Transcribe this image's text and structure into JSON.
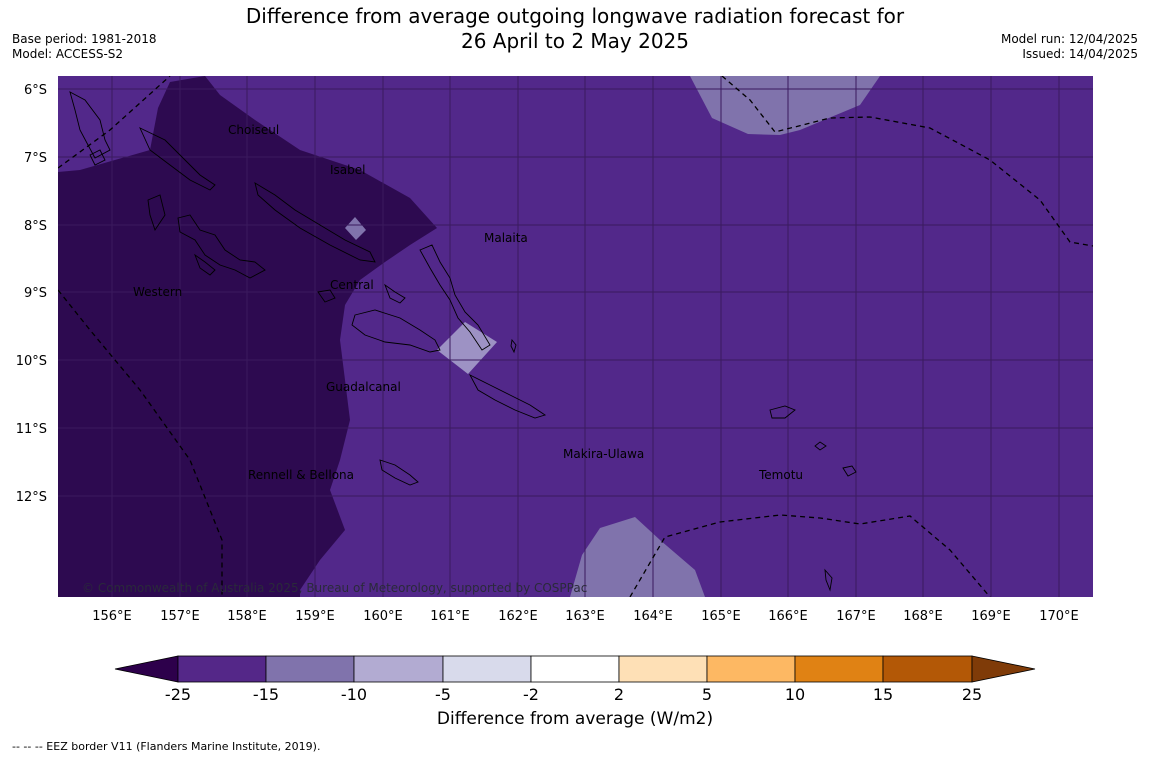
{
  "title": {
    "line1": "Difference from average outgoing longwave radiation forecast for",
    "line2": "26 April to 2 May 2025"
  },
  "meta_left": {
    "base_period": "Base period: 1981-2018",
    "model": "Model: ACCESS-S2"
  },
  "meta_right": {
    "model_run": "Model run: 12/04/2025",
    "issued": "Issued: 14/04/2025"
  },
  "map": {
    "lat_labels": [
      "6°S",
      "7°S",
      "8°S",
      "9°S",
      "10°S",
      "11°S",
      "12°S"
    ],
    "lon_labels": [
      "156°E",
      "157°E",
      "158°E",
      "159°E",
      "160°E",
      "161°E",
      "162°E",
      "163°E",
      "164°E",
      "165°E",
      "166°E",
      "167°E",
      "168°E",
      "169°E",
      "170°E"
    ],
    "region_labels": [
      {
        "name": "Choiseul"
      },
      {
        "name": "Isabel"
      },
      {
        "name": "Malaita"
      },
      {
        "name": "Western"
      },
      {
        "name": "Central"
      },
      {
        "name": "Guadalcanal"
      },
      {
        "name": "Makira-Ulawa"
      },
      {
        "name": "Temotu"
      },
      {
        "name": "Rennell & Bellona"
      }
    ],
    "copyright": "© Commonwealth of Australia 2025, Bureau of Meteorology, supported by COSPPac",
    "colors": {
      "ocean_base": "#52288a",
      "strong_negative": "#2d0a50",
      "moderate_negative": "#8073ac",
      "weak_negative": "#b2abd2",
      "gridline": "#3a1a5e"
    }
  },
  "colorbar": {
    "ticks": [
      "-25",
      "-15",
      "-10",
      "-5",
      "-2",
      "2",
      "5",
      "10",
      "15",
      "25"
    ],
    "colors": [
      "#2d004b",
      "#542788",
      "#8073ac",
      "#b2abd2",
      "#d8daeb",
      "#ffffff",
      "#fee0b6",
      "#fdb863",
      "#e08214",
      "#b35806",
      "#7f3b08"
    ],
    "label": "Difference from average (W/m2)"
  },
  "footer": "--  --  -- EEZ border V11 (Flanders Marine Institute, 2019)."
}
